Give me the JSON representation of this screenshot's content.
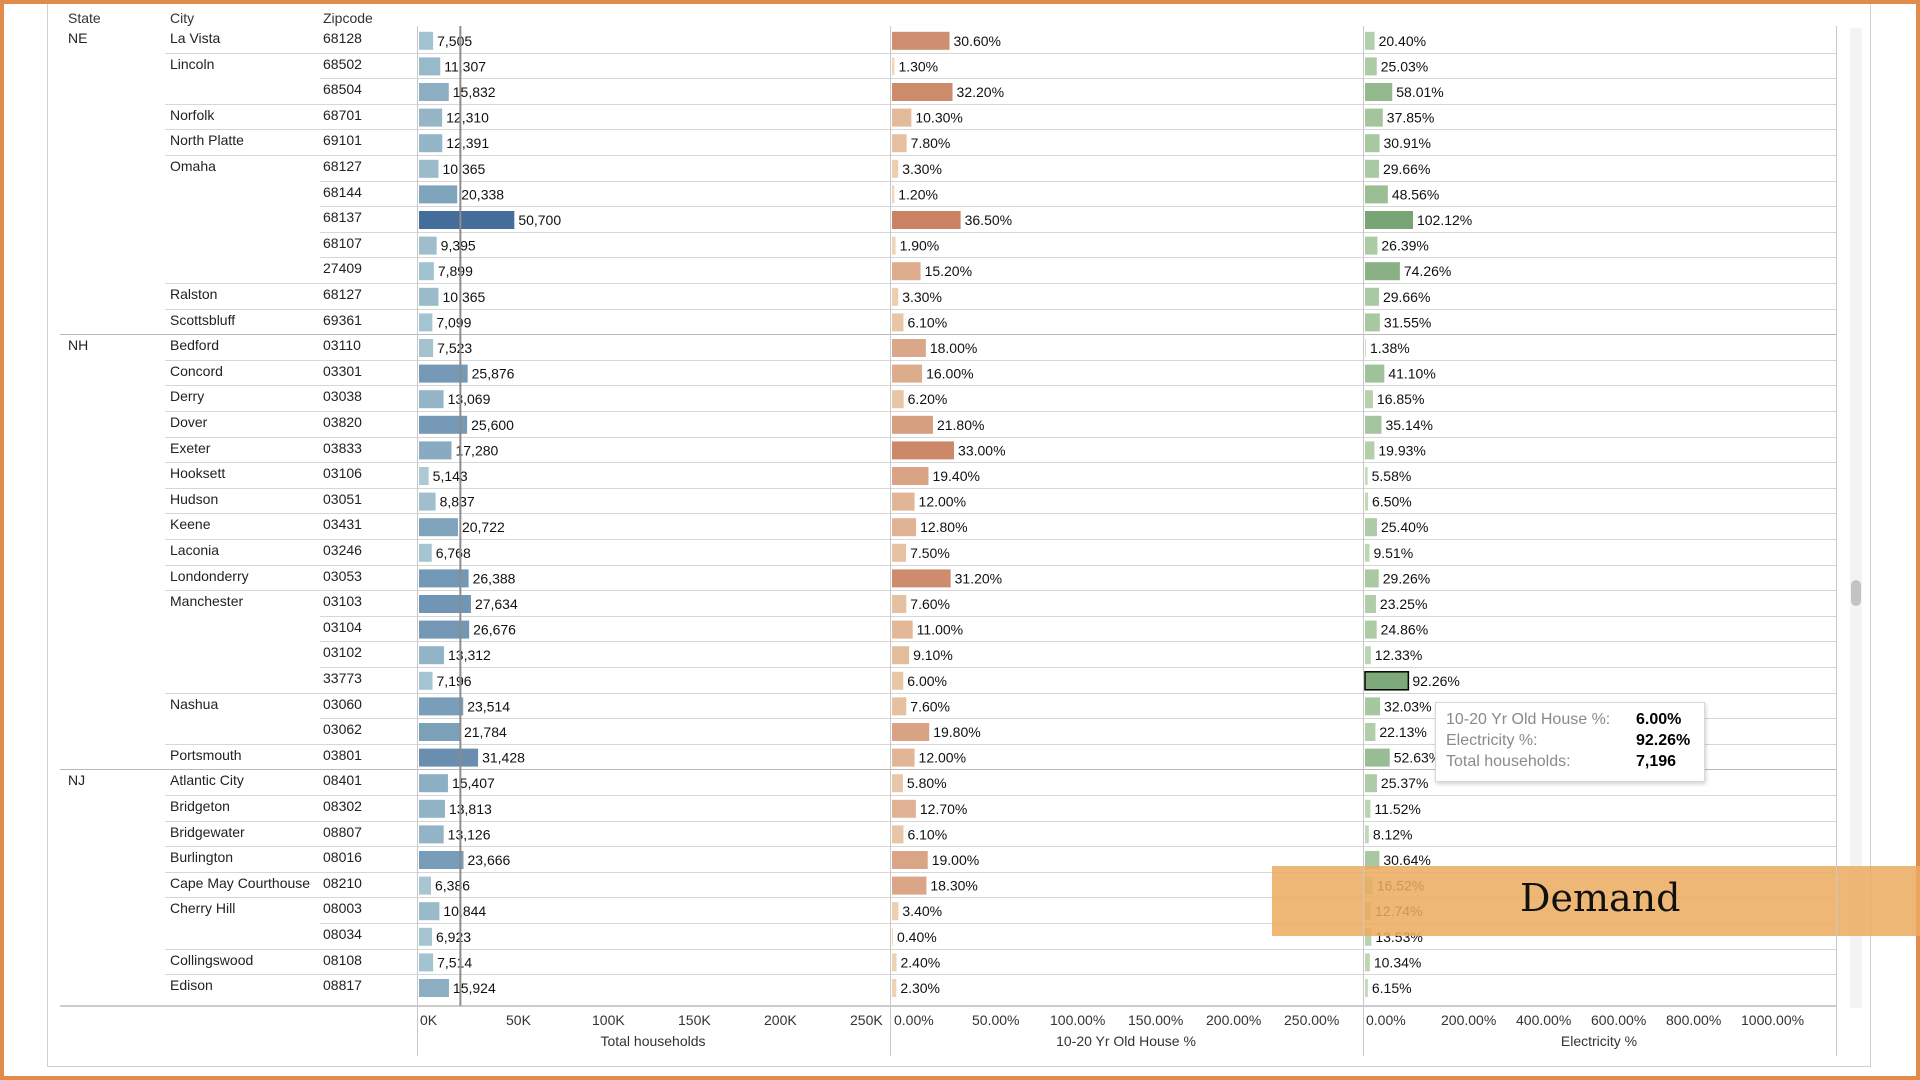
{
  "headers": {
    "state": "State",
    "city": "City",
    "zipcode": "Zipcode"
  },
  "overlay": {
    "label": "Demand"
  },
  "tooltip": {
    "rows": [
      {
        "label": "10-20 Yr Old House %:",
        "value": "6.00%"
      },
      {
        "label": "Electricity %:",
        "value": "92.26%"
      },
      {
        "label": "Total households:",
        "value": "7,196"
      }
    ]
  },
  "chart_data": {
    "type": "bar",
    "panels": [
      {
        "name": "Total households",
        "ticks": [
          "0K",
          "50K",
          "100K",
          "150K",
          "200K",
          "250K"
        ],
        "xlim": [
          0,
          250000
        ],
        "colors": [
          "#c6e2e3",
          "#2f5a8f"
        ],
        "reference_line": 22000
      },
      {
        "name": "10-20 Yr Old House %",
        "ticks": [
          "0.00%",
          "50.00%",
          "100.00%",
          "150.00%",
          "200.00%",
          "250.00%"
        ],
        "xlim": [
          0,
          250
        ],
        "colors": [
          "#f5e0c0",
          "#b5583a"
        ]
      },
      {
        "name": "Electricity %",
        "ticks": [
          "0.00%",
          "200.00%",
          "400.00%",
          "600.00%",
          "800.00%",
          "1000.00%"
        ],
        "xlim": [
          0,
          1000
        ],
        "colors": [
          "#cde3c3",
          "#2e6e33"
        ]
      }
    ],
    "rows": [
      {
        "state": "NE",
        "city": "La Vista",
        "zip": "68128",
        "households": 7505,
        "households_label": "7,505",
        "old": 30.6,
        "old_label": "30.60%",
        "elec": 20.4,
        "elec_label": "20.40%"
      },
      {
        "state": "",
        "city": "Lincoln",
        "zip": "68502",
        "households": 11307,
        "households_label": "11,307",
        "old": 1.3,
        "old_label": "1.30%",
        "elec": 25.03,
        "elec_label": "25.03%"
      },
      {
        "state": "",
        "city": "",
        "zip": "68504",
        "households": 15832,
        "households_label": "15,832",
        "old": 32.2,
        "old_label": "32.20%",
        "elec": 58.01,
        "elec_label": "58.01%"
      },
      {
        "state": "",
        "city": "Norfolk",
        "zip": "68701",
        "households": 12310,
        "households_label": "12,310",
        "old": 10.3,
        "old_label": "10.30%",
        "elec": 37.85,
        "elec_label": "37.85%"
      },
      {
        "state": "",
        "city": "North Platte",
        "zip": "69101",
        "households": 12391,
        "households_label": "12,391",
        "old": 7.8,
        "old_label": "7.80%",
        "elec": 30.91,
        "elec_label": "30.91%"
      },
      {
        "state": "",
        "city": "Omaha",
        "zip": "68127",
        "households": 10365,
        "households_label": "10,365",
        "old": 3.3,
        "old_label": "3.30%",
        "elec": 29.66,
        "elec_label": "29.66%"
      },
      {
        "state": "",
        "city": "",
        "zip": "68144",
        "households": 20338,
        "households_label": "20,338",
        "old": 1.2,
        "old_label": "1.20%",
        "elec": 48.56,
        "elec_label": "48.56%"
      },
      {
        "state": "",
        "city": "",
        "zip": "68137",
        "households": 50700,
        "households_label": "50,700",
        "old": 36.5,
        "old_label": "36.50%",
        "elec": 102.12,
        "elec_label": "102.12%"
      },
      {
        "state": "",
        "city": "",
        "zip": "68107",
        "households": 9395,
        "households_label": "9,395",
        "old": 1.9,
        "old_label": "1.90%",
        "elec": 26.39,
        "elec_label": "26.39%"
      },
      {
        "state": "",
        "city": "",
        "zip": "27409",
        "households": 7899,
        "households_label": "7,899",
        "old": 15.2,
        "old_label": "15.20%",
        "elec": 74.26,
        "elec_label": "74.26%"
      },
      {
        "state": "",
        "city": "Ralston",
        "zip": "68127",
        "households": 10365,
        "households_label": "10,365",
        "old": 3.3,
        "old_label": "3.30%",
        "elec": 29.66,
        "elec_label": "29.66%"
      },
      {
        "state": "",
        "city": "Scottsbluff",
        "zip": "69361",
        "households": 7099,
        "households_label": "7,099",
        "old": 6.1,
        "old_label": "6.10%",
        "elec": 31.55,
        "elec_label": "31.55%"
      },
      {
        "state": "NH",
        "city": "Bedford",
        "zip": "03110",
        "households": 7523,
        "households_label": "7,523",
        "old": 18.0,
        "old_label": "18.00%",
        "elec": 1.38,
        "elec_label": "1.38%"
      },
      {
        "state": "",
        "city": "Concord",
        "zip": "03301",
        "households": 25876,
        "households_label": "25,876",
        "old": 16.0,
        "old_label": "16.00%",
        "elec": 41.1,
        "elec_label": "41.10%"
      },
      {
        "state": "",
        "city": "Derry",
        "zip": "03038",
        "households": 13069,
        "households_label": "13,069",
        "old": 6.2,
        "old_label": "6.20%",
        "elec": 16.85,
        "elec_label": "16.85%"
      },
      {
        "state": "",
        "city": "Dover",
        "zip": "03820",
        "households": 25600,
        "households_label": "25,600",
        "old": 21.8,
        "old_label": "21.80%",
        "elec": 35.14,
        "elec_label": "35.14%"
      },
      {
        "state": "",
        "city": "Exeter",
        "zip": "03833",
        "households": 17280,
        "households_label": "17,280",
        "old": 33.0,
        "old_label": "33.00%",
        "elec": 19.93,
        "elec_label": "19.93%"
      },
      {
        "state": "",
        "city": "Hooksett",
        "zip": "03106",
        "households": 5143,
        "households_label": "5,143",
        "old": 19.4,
        "old_label": "19.40%",
        "elec": 5.58,
        "elec_label": "5.58%"
      },
      {
        "state": "",
        "city": "Hudson",
        "zip": "03051",
        "households": 8837,
        "households_label": "8,837",
        "old": 12.0,
        "old_label": "12.00%",
        "elec": 6.5,
        "elec_label": "6.50%"
      },
      {
        "state": "",
        "city": "Keene",
        "zip": "03431",
        "households": 20722,
        "households_label": "20,722",
        "old": 12.8,
        "old_label": "12.80%",
        "elec": 25.4,
        "elec_label": "25.40%"
      },
      {
        "state": "",
        "city": "Laconia",
        "zip": "03246",
        "households": 6768,
        "households_label": "6,768",
        "old": 7.5,
        "old_label": "7.50%",
        "elec": 9.51,
        "elec_label": "9.51%"
      },
      {
        "state": "",
        "city": "Londonderry",
        "zip": "03053",
        "households": 26388,
        "households_label": "26,388",
        "old": 31.2,
        "old_label": "31.20%",
        "elec": 29.26,
        "elec_label": "29.26%"
      },
      {
        "state": "",
        "city": "Manchester",
        "zip": "03103",
        "households": 27634,
        "households_label": "27,634",
        "old": 7.6,
        "old_label": "7.60%",
        "elec": 23.25,
        "elec_label": "23.25%"
      },
      {
        "state": "",
        "city": "",
        "zip": "03104",
        "households": 26676,
        "households_label": "26,676",
        "old": 11.0,
        "old_label": "11.00%",
        "elec": 24.86,
        "elec_label": "24.86%"
      },
      {
        "state": "",
        "city": "",
        "zip": "03102",
        "households": 13312,
        "households_label": "13,312",
        "old": 9.1,
        "old_label": "9.10%",
        "elec": 12.33,
        "elec_label": "12.33%"
      },
      {
        "state": "",
        "city": "",
        "zip": "33773",
        "households": 7196,
        "households_label": "7,196",
        "old": 6.0,
        "old_label": "6.00%",
        "elec": 92.26,
        "elec_label": "92.26%",
        "selected": true
      },
      {
        "state": "",
        "city": "Nashua",
        "zip": "03060",
        "households": 23514,
        "households_label": "23,514",
        "old": 7.6,
        "old_label": "7.60%",
        "elec": 32.03,
        "elec_label": "32.03%"
      },
      {
        "state": "",
        "city": "",
        "zip": "03062",
        "households": 21784,
        "households_label": "21,784",
        "old": 19.8,
        "old_label": "19.80%",
        "elec": 22.13,
        "elec_label": "22.13%"
      },
      {
        "state": "",
        "city": "Portsmouth",
        "zip": "03801",
        "households": 31428,
        "households_label": "31,428",
        "old": 12.0,
        "old_label": "12.00%",
        "elec": 52.63,
        "elec_label": "52.63%"
      },
      {
        "state": "NJ",
        "city": "Atlantic City",
        "zip": "08401",
        "households": 15407,
        "households_label": "15,407",
        "old": 5.8,
        "old_label": "5.80%",
        "elec": 25.37,
        "elec_label": "25.37%"
      },
      {
        "state": "",
        "city": "Bridgeton",
        "zip": "08302",
        "households": 13813,
        "households_label": "13,813",
        "old": 12.7,
        "old_label": "12.70%",
        "elec": 11.52,
        "elec_label": "11.52%"
      },
      {
        "state": "",
        "city": "Bridgewater",
        "zip": "08807",
        "households": 13126,
        "households_label": "13,126",
        "old": 6.1,
        "old_label": "6.10%",
        "elec": 8.12,
        "elec_label": "8.12%"
      },
      {
        "state": "",
        "city": "Burlington",
        "zip": "08016",
        "households": 23666,
        "households_label": "23,666",
        "old": 19.0,
        "old_label": "19.00%",
        "elec": 30.64,
        "elec_label": "30.64%"
      },
      {
        "state": "",
        "city": "Cape May Courthouse",
        "zip": "08210",
        "households": 6386,
        "households_label": "6,386",
        "old": 18.3,
        "old_label": "18.30%",
        "elec": 16.52,
        "elec_label": "16.52%"
      },
      {
        "state": "",
        "city": "Cherry Hill",
        "zip": "08003",
        "households": 10844,
        "households_label": "10,844",
        "old": 3.4,
        "old_label": "3.40%",
        "elec": 12.74,
        "elec_label": "12.74%"
      },
      {
        "state": "",
        "city": "",
        "zip": "08034",
        "households": 6923,
        "households_label": "6,923",
        "old": 0.4,
        "old_label": "0.40%",
        "elec": 13.53,
        "elec_label": "13.53%"
      },
      {
        "state": "",
        "city": "Collingswood",
        "zip": "08108",
        "households": 7514,
        "households_label": "7,514",
        "old": 2.4,
        "old_label": "2.40%",
        "elec": 10.34,
        "elec_label": "10.34%"
      },
      {
        "state": "",
        "city": "Edison",
        "zip": "08817",
        "households": 15924,
        "households_label": "15,924",
        "old": 2.3,
        "old_label": "2.30%",
        "elec": 6.15,
        "elec_label": "6.15%"
      }
    ]
  }
}
